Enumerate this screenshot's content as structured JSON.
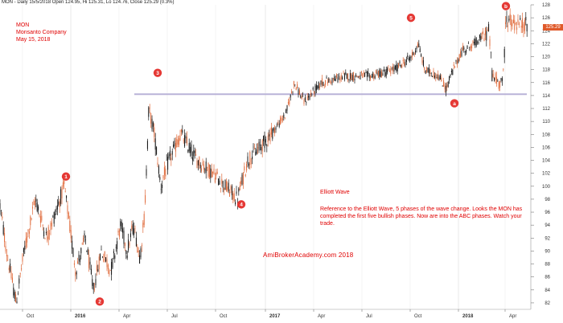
{
  "header": "MON - Daily 15/5/2018 Open 124.95, Hi 125.31, Lo 124.76, Close 125.29 (0.3%)",
  "info": {
    "ticker": "MON",
    "company": "Monsanto Company",
    "date": "May 15, 2018"
  },
  "annotation": {
    "title": "Elliott Wave",
    "text": "Reference to the Elliott Wave, 5 phases of the wave change. Looks the MON has completed the first five bullish phases. Now are into the ABC phases. Watch your trade."
  },
  "credit": "AmiBrokerAcademy.com   2018",
  "last_price_tag": "125.29",
  "colors": {
    "up": "#e06a3a",
    "down": "#111111",
    "marker": "#e53935",
    "line": "#b9b3d8",
    "annotation": "#e00000"
  },
  "chart_data": {
    "type": "candlestick",
    "ylim": [
      81,
      128
    ],
    "yticks": [
      82,
      84,
      86,
      88,
      90,
      92,
      94,
      96,
      98,
      100,
      102,
      104,
      106,
      108,
      110,
      112,
      114,
      116,
      118,
      120,
      122,
      124,
      126,
      128
    ],
    "xtick_labels": [
      "Oct",
      "2016",
      "Apr",
      "Jul",
      "Oct",
      "2017",
      "Apr",
      "Jul",
      "Oct",
      "2018",
      "Apr"
    ],
    "anchors": [
      [
        0,
        97
      ],
      [
        8,
        90
      ],
      [
        20,
        82
      ],
      [
        30,
        90
      ],
      [
        44,
        98
      ],
      [
        58,
        92
      ],
      [
        80,
        100
      ],
      [
        94,
        87
      ],
      [
        106,
        92
      ],
      [
        116,
        84
      ],
      [
        126,
        90
      ],
      [
        138,
        87
      ],
      [
        150,
        94
      ],
      [
        158,
        90
      ],
      [
        166,
        94
      ],
      [
        174,
        89
      ],
      [
        180,
        96
      ],
      [
        185,
        112
      ],
      [
        192,
        108
      ],
      [
        200,
        100
      ],
      [
        210,
        104
      ],
      [
        225,
        108
      ],
      [
        245,
        104
      ],
      [
        265,
        102
      ],
      [
        295,
        98
      ],
      [
        308,
        104
      ],
      [
        330,
        107
      ],
      [
        355,
        111
      ],
      [
        366,
        116
      ],
      [
        378,
        113
      ],
      [
        400,
        116
      ],
      [
        430,
        117
      ],
      [
        460,
        117
      ],
      [
        490,
        118
      ],
      [
        512,
        120
      ],
      [
        520,
        122
      ],
      [
        528,
        118
      ],
      [
        545,
        117
      ],
      [
        555,
        115
      ],
      [
        560,
        117
      ],
      [
        575,
        121
      ],
      [
        590,
        122
      ],
      [
        608,
        124
      ],
      [
        612,
        117
      ],
      [
        620,
        116
      ],
      [
        626,
        117
      ],
      [
        629,
        126
      ],
      [
        640,
        125
      ],
      [
        656,
        125
      ]
    ],
    "support_level": 114.2,
    "waves": [
      {
        "label": "1",
        "x": 82,
        "y": 101.5
      },
      {
        "label": "2",
        "x": 124,
        "y": 82.2
      },
      {
        "label": "3",
        "x": 196,
        "y": 117.5
      },
      {
        "label": "4",
        "x": 300,
        "y": 97.2
      },
      {
        "label": "5",
        "x": 511,
        "y": 126.0
      },
      {
        "label": "a",
        "x": 565,
        "y": 112.8
      },
      {
        "label": "b",
        "x": 629,
        "y": 127.8
      }
    ],
    "last_close": 125.29
  }
}
